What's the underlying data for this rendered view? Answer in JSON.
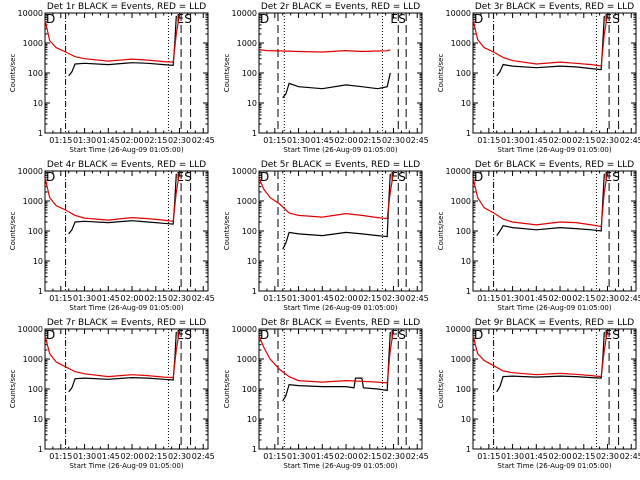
{
  "colors": {
    "events": "#000000",
    "lld": "#e00000"
  },
  "chart_data": [
    {
      "type": "line",
      "title": "Det 1r BLACK = Events, RED = LLD",
      "xlabel": "Start Time (26-Aug-09 01:05:00)",
      "ylabel": "Counts/sec",
      "x_ticks": [
        "01:15",
        "01:30",
        "01:45",
        "02:00",
        "02:15",
        "02:30",
        "02:45"
      ],
      "y_ticks": [
        "1",
        "10",
        "100",
        "1000",
        "10000"
      ],
      "y_scale": "log",
      "ylim": [
        1,
        10000
      ],
      "xlim": [
        "01:05",
        "02:48"
      ],
      "markers": [
        "D",
        "E",
        "S"
      ],
      "vlines": [
        {
          "t": "01:18",
          "style": "dashdot"
        },
        {
          "t": "02:23",
          "style": "dotted"
        },
        {
          "t": "02:31",
          "style": "dashed"
        },
        {
          "t": "02:37",
          "style": "dashed"
        }
      ],
      "series": [
        {
          "name": "Events",
          "x": [
            "01:20",
            "01:22",
            "01:24",
            "01:30",
            "01:45",
            "02:00",
            "02:10",
            "02:20",
            "02:26",
            "02:27",
            "02:28"
          ],
          "y": [
            80,
            110,
            200,
            210,
            190,
            220,
            210,
            190,
            180,
            1000,
            8000
          ]
        },
        {
          "name": "LLD",
          "x": [
            "01:05",
            "01:08",
            "01:12",
            "01:18",
            "01:24",
            "01:30",
            "01:45",
            "02:00",
            "02:10",
            "02:20",
            "02:26",
            "02:28",
            "02:30"
          ],
          "y": [
            6000,
            1200,
            700,
            500,
            350,
            300,
            250,
            290,
            270,
            240,
            230,
            2000,
            9000
          ]
        }
      ]
    },
    {
      "type": "line",
      "title": "Det 2r BLACK = Events, RED = LLD",
      "xlabel": "Start Time (26-Aug-09 01:05:00)",
      "ylabel": "Counts/sec",
      "x_ticks": [
        "01:15",
        "01:30",
        "01:45",
        "02:00",
        "02:15",
        "02:30",
        "02:45"
      ],
      "y_ticks": [
        "1",
        "10",
        "100",
        "1000",
        "10000"
      ],
      "y_scale": "log",
      "ylim": [
        1,
        10000
      ],
      "xlim": [
        "01:05",
        "02:48"
      ],
      "markers": [
        "D",
        "E",
        "S"
      ],
      "vlines": [
        {
          "t": "01:17",
          "style": "dashed"
        },
        {
          "t": "01:21",
          "style": "dotted"
        },
        {
          "t": "02:23",
          "style": "dotted"
        },
        {
          "t": "02:33",
          "style": "dashed"
        },
        {
          "t": "02:38",
          "style": "dashed"
        }
      ],
      "series": [
        {
          "name": "Events",
          "x": [
            "01:20",
            "01:22",
            "01:24",
            "01:30",
            "01:45",
            "02:00",
            "02:10",
            "02:20",
            "02:26",
            "02:28"
          ],
          "y": [
            15,
            20,
            45,
            35,
            30,
            40,
            35,
            30,
            35,
            100
          ]
        },
        {
          "name": "LLD",
          "x": [
            "01:05",
            "01:10",
            "01:20",
            "01:30",
            "01:45",
            "02:00",
            "02:10",
            "02:20",
            "02:26",
            "02:28"
          ],
          "y": [
            600,
            560,
            540,
            520,
            500,
            560,
            520,
            540,
            550,
            600
          ]
        }
      ]
    },
    {
      "type": "line",
      "title": "Det 3r BLACK = Events, RED = LLD",
      "xlabel": "Start Time (26-Aug-09 01:05:00)",
      "ylabel": "Counts/sec",
      "x_ticks": [
        "01:15",
        "01:30",
        "01:45",
        "02:00",
        "02:15",
        "02:30",
        "02:45"
      ],
      "y_ticks": [
        "1",
        "10",
        "100",
        "1000",
        "10000"
      ],
      "y_scale": "log",
      "ylim": [
        1,
        10000
      ],
      "xlim": [
        "01:05",
        "02:48"
      ],
      "markers": [
        "D",
        "E",
        "S"
      ],
      "vlines": [
        {
          "t": "01:18",
          "style": "dashdot"
        },
        {
          "t": "02:23",
          "style": "dotted"
        },
        {
          "t": "02:31",
          "style": "dashed"
        },
        {
          "t": "02:37",
          "style": "dashed"
        }
      ],
      "series": [
        {
          "name": "Events",
          "x": [
            "01:20",
            "01:22",
            "01:24",
            "01:30",
            "01:45",
            "02:00",
            "02:10",
            "02:20",
            "02:26",
            "02:27",
            "02:28"
          ],
          "y": [
            80,
            110,
            190,
            170,
            150,
            170,
            160,
            140,
            130,
            1000,
            8000
          ]
        },
        {
          "name": "LLD",
          "x": [
            "01:05",
            "01:08",
            "01:12",
            "01:18",
            "01:24",
            "01:30",
            "01:45",
            "02:00",
            "02:10",
            "02:20",
            "02:26",
            "02:28",
            "02:30"
          ],
          "y": [
            6000,
            1300,
            700,
            500,
            330,
            260,
            200,
            230,
            210,
            190,
            170,
            2000,
            9000
          ]
        }
      ]
    },
    {
      "type": "line",
      "title": "Det 4r BLACK = Events, RED = LLD",
      "xlabel": "Start Time (26-Aug-09 01:05:00)",
      "ylabel": "Counts/sec",
      "x_ticks": [
        "01:15",
        "01:30",
        "01:45",
        "02:00",
        "02:15",
        "02:30",
        "02:45"
      ],
      "y_ticks": [
        "1",
        "10",
        "100",
        "1000",
        "10000"
      ],
      "y_scale": "log",
      "ylim": [
        1,
        10000
      ],
      "xlim": [
        "01:05",
        "02:48"
      ],
      "markers": [
        "D",
        "E",
        "S"
      ],
      "vlines": [
        {
          "t": "01:18",
          "style": "dashdot"
        },
        {
          "t": "02:23",
          "style": "dotted"
        },
        {
          "t": "02:31",
          "style": "dashed"
        },
        {
          "t": "02:37",
          "style": "dashed"
        }
      ],
      "series": [
        {
          "name": "Events",
          "x": [
            "01:20",
            "01:22",
            "01:24",
            "01:30",
            "01:45",
            "02:00",
            "02:10",
            "02:20",
            "02:26",
            "02:27",
            "02:28"
          ],
          "y": [
            80,
            110,
            200,
            210,
            190,
            220,
            200,
            180,
            170,
            1000,
            8000
          ]
        },
        {
          "name": "LLD",
          "x": [
            "01:05",
            "01:08",
            "01:12",
            "01:18",
            "01:24",
            "01:30",
            "01:45",
            "02:00",
            "02:10",
            "02:20",
            "02:26",
            "02:28",
            "02:30"
          ],
          "y": [
            6000,
            1300,
            700,
            500,
            330,
            270,
            230,
            280,
            260,
            230,
            210,
            2000,
            9000
          ]
        }
      ]
    },
    {
      "type": "line",
      "title": "Det 5r BLACK = Events, RED = LLD",
      "xlabel": "Start Time (26-Aug-09 01:05:00)",
      "ylabel": "Counts/sec",
      "x_ticks": [
        "01:15",
        "01:30",
        "01:45",
        "02:00",
        "02:15",
        "02:30",
        "02:45"
      ],
      "y_ticks": [
        "1",
        "10",
        "100",
        "1000",
        "10000"
      ],
      "y_scale": "log",
      "ylim": [
        1,
        10000
      ],
      "xlim": [
        "01:05",
        "02:48"
      ],
      "markers": [
        "D",
        "E",
        "S"
      ],
      "vlines": [
        {
          "t": "01:17",
          "style": "dashed"
        },
        {
          "t": "01:21",
          "style": "dotted"
        },
        {
          "t": "02:23",
          "style": "dotted"
        },
        {
          "t": "02:33",
          "style": "dashed"
        },
        {
          "t": "02:38",
          "style": "dashed"
        }
      ],
      "series": [
        {
          "name": "Events",
          "x": [
            "01:20",
            "01:22",
            "01:24",
            "01:30",
            "01:45",
            "02:00",
            "02:10",
            "02:20",
            "02:26",
            "02:27",
            "02:28"
          ],
          "y": [
            25,
            40,
            90,
            80,
            70,
            90,
            80,
            70,
            65,
            1000,
            8000
          ]
        },
        {
          "name": "LLD",
          "x": [
            "01:05",
            "01:08",
            "01:12",
            "01:18",
            "01:24",
            "01:30",
            "01:45",
            "02:00",
            "02:10",
            "02:20",
            "02:26",
            "02:28",
            "02:30"
          ],
          "y": [
            6000,
            2500,
            1300,
            800,
            400,
            330,
            290,
            380,
            330,
            280,
            260,
            2000,
            9000
          ]
        }
      ]
    },
    {
      "type": "line",
      "title": "Det 6r BLACK = Events, RED = LLD",
      "xlabel": "Start Time (26-Aug-09 01:05:00)",
      "ylabel": "Counts/sec",
      "x_ticks": [
        "01:15",
        "01:30",
        "01:45",
        "02:00",
        "02:15",
        "02:30",
        "02:45"
      ],
      "y_ticks": [
        "1",
        "10",
        "100",
        "1000",
        "10000"
      ],
      "y_scale": "log",
      "ylim": [
        1,
        10000
      ],
      "xlim": [
        "01:05",
        "02:48"
      ],
      "markers": [
        "D",
        "E",
        "S"
      ],
      "vlines": [
        {
          "t": "01:18",
          "style": "dashdot"
        },
        {
          "t": "02:23",
          "style": "dotted"
        },
        {
          "t": "02:31",
          "style": "dashed"
        },
        {
          "t": "02:37",
          "style": "dashed"
        }
      ],
      "series": [
        {
          "name": "Events",
          "x": [
            "01:20",
            "01:22",
            "01:24",
            "01:30",
            "01:45",
            "02:00",
            "02:10",
            "02:20",
            "02:26",
            "02:27",
            "02:28"
          ],
          "y": [
            70,
            100,
            150,
            130,
            110,
            130,
            120,
            110,
            100,
            1000,
            8000
          ]
        },
        {
          "name": "LLD",
          "x": [
            "01:05",
            "01:08",
            "01:12",
            "01:18",
            "01:24",
            "01:30",
            "01:45",
            "02:00",
            "02:10",
            "02:20",
            "02:26",
            "02:28",
            "02:30"
          ],
          "y": [
            6000,
            1300,
            600,
            400,
            250,
            200,
            160,
            200,
            190,
            160,
            140,
            2000,
            9000
          ]
        }
      ]
    },
    {
      "type": "line",
      "title": "Det 7r BLACK = Events, RED = LLD",
      "xlabel": "Start Time (26-Aug-09 01:05:00)",
      "ylabel": "Counts/sec",
      "x_ticks": [
        "01:15",
        "01:30",
        "01:45",
        "02:00",
        "02:15",
        "02:30",
        "02:45"
      ],
      "y_ticks": [
        "1",
        "10",
        "100",
        "1000",
        "10000"
      ],
      "y_scale": "log",
      "ylim": [
        1,
        10000
      ],
      "xlim": [
        "01:05",
        "02:48"
      ],
      "markers": [
        "D",
        "E",
        "S"
      ],
      "vlines": [
        {
          "t": "01:18",
          "style": "dashdot"
        },
        {
          "t": "02:23",
          "style": "dotted"
        },
        {
          "t": "02:31",
          "style": "dashed"
        },
        {
          "t": "02:37",
          "style": "dashed"
        }
      ],
      "series": [
        {
          "name": "Events",
          "x": [
            "01:20",
            "01:22",
            "01:24",
            "01:30",
            "01:45",
            "02:00",
            "02:10",
            "02:20",
            "02:26",
            "02:27",
            "02:28"
          ],
          "y": [
            80,
            110,
            220,
            230,
            210,
            240,
            230,
            210,
            200,
            1000,
            8000
          ]
        },
        {
          "name": "LLD",
          "x": [
            "01:05",
            "01:08",
            "01:12",
            "01:18",
            "01:24",
            "01:30",
            "01:45",
            "02:00",
            "02:10",
            "02:20",
            "02:26",
            "02:28",
            "02:30"
          ],
          "y": [
            6000,
            1500,
            800,
            550,
            380,
            320,
            260,
            300,
            280,
            250,
            240,
            2000,
            9000
          ]
        }
      ]
    },
    {
      "type": "line",
      "title": "Det 8r BLACK = Events, RED = LLD",
      "xlabel": "Start Time (26-Aug-09 01:05:00)",
      "ylabel": "Counts/sec",
      "x_ticks": [
        "01:15",
        "01:30",
        "01:45",
        "02:00",
        "02:15",
        "02:30",
        "02:45"
      ],
      "y_ticks": [
        "1",
        "10",
        "100",
        "1000",
        "10000"
      ],
      "y_scale": "log",
      "ylim": [
        1,
        10000
      ],
      "xlim": [
        "01:05",
        "02:48"
      ],
      "markers": [
        "D",
        "E",
        "S"
      ],
      "vlines": [
        {
          "t": "01:17",
          "style": "dashed"
        },
        {
          "t": "01:21",
          "style": "dotted"
        },
        {
          "t": "02:23",
          "style": "dotted"
        },
        {
          "t": "02:33",
          "style": "dashed"
        },
        {
          "t": "02:38",
          "style": "dashed"
        }
      ],
      "series": [
        {
          "name": "Events",
          "x": [
            "01:20",
            "01:22",
            "01:24",
            "01:30",
            "01:45",
            "02:00",
            "02:05",
            "02:06",
            "02:10",
            "02:11",
            "02:20",
            "02:26",
            "02:27",
            "02:28"
          ],
          "y": [
            40,
            60,
            140,
            130,
            120,
            120,
            110,
            230,
            230,
            110,
            100,
            90,
            1000,
            8000
          ]
        },
        {
          "name": "LLD",
          "x": [
            "01:05",
            "01:08",
            "01:12",
            "01:18",
            "01:24",
            "01:30",
            "01:45",
            "02:00",
            "02:10",
            "02:20",
            "02:26",
            "02:28",
            "02:30"
          ],
          "y": [
            6000,
            2500,
            1000,
            450,
            260,
            190,
            170,
            190,
            180,
            170,
            160,
            2000,
            9000
          ]
        }
      ]
    },
    {
      "type": "line",
      "title": "Det 9r BLACK = Events, RED = LLD",
      "xlabel": "Start Time (26-Aug-09 01:05:00)",
      "ylabel": "Counts/sec",
      "x_ticks": [
        "01:15",
        "01:30",
        "01:45",
        "02:00",
        "02:15",
        "02:30",
        "02:45"
      ],
      "y_ticks": [
        "1",
        "10",
        "100",
        "1000",
        "10000"
      ],
      "y_scale": "log",
      "ylim": [
        1,
        10000
      ],
      "xlim": [
        "01:05",
        "02:48"
      ],
      "markers": [
        "D",
        "E",
        "S"
      ],
      "vlines": [
        {
          "t": "01:18",
          "style": "dashdot"
        },
        {
          "t": "02:23",
          "style": "dotted"
        },
        {
          "t": "02:31",
          "style": "dashed"
        },
        {
          "t": "02:37",
          "style": "dashed"
        }
      ],
      "series": [
        {
          "name": "Events",
          "x": [
            "01:20",
            "01:22",
            "01:24",
            "01:30",
            "01:45",
            "02:00",
            "02:10",
            "02:20",
            "02:26",
            "02:27",
            "02:28"
          ],
          "y": [
            80,
            120,
            260,
            270,
            250,
            270,
            260,
            240,
            230,
            1000,
            8000
          ]
        },
        {
          "name": "LLD",
          "x": [
            "01:05",
            "01:08",
            "01:12",
            "01:18",
            "01:24",
            "01:30",
            "01:45",
            "02:00",
            "02:10",
            "02:20",
            "02:26",
            "02:28",
            "02:30"
          ],
          "y": [
            6000,
            1500,
            900,
            600,
            400,
            350,
            300,
            330,
            310,
            280,
            260,
            2000,
            9000
          ]
        }
      ]
    }
  ]
}
